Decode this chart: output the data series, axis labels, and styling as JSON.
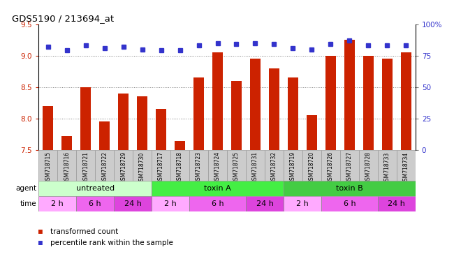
{
  "title": "GDS5190 / 213694_at",
  "samples": [
    "GSM718715",
    "GSM718716",
    "GSM718721",
    "GSM718722",
    "GSM718729",
    "GSM718730",
    "GSM718717",
    "GSM718718",
    "GSM718723",
    "GSM718724",
    "GSM718725",
    "GSM718731",
    "GSM718732",
    "GSM718719",
    "GSM718720",
    "GSM718726",
    "GSM718727",
    "GSM718728",
    "GSM718733",
    "GSM718734"
  ],
  "bar_values": [
    8.2,
    7.72,
    8.5,
    7.95,
    8.4,
    8.35,
    8.15,
    7.65,
    8.65,
    9.05,
    8.6,
    8.95,
    8.8,
    8.65,
    8.05,
    9.0,
    9.25,
    9.0,
    8.95,
    9.05
  ],
  "dot_values": [
    82,
    79,
    83,
    81,
    82,
    80,
    79,
    79,
    83,
    85,
    84,
    85,
    84,
    81,
    80,
    84,
    87,
    83,
    83,
    83
  ],
  "ylim_left": [
    7.5,
    9.5
  ],
  "ylim_right": [
    0,
    100
  ],
  "yticks_left": [
    7.5,
    8.0,
    8.5,
    9.0,
    9.5
  ],
  "yticks_right": [
    0,
    25,
    50,
    75,
    100
  ],
  "bar_color": "#cc2200",
  "dot_color": "#3333cc",
  "dot_marker": "s",
  "dot_size": 5,
  "gridlines": [
    8.0,
    8.5,
    9.0
  ],
  "agent_groups": [
    {
      "label": "untreated",
      "start": 0,
      "end": 6,
      "color": "#ccffcc"
    },
    {
      "label": "toxin A",
      "start": 6,
      "end": 13,
      "color": "#44ee44"
    },
    {
      "label": "toxin B",
      "start": 13,
      "end": 20,
      "color": "#44cc44"
    }
  ],
  "time_groups": [
    {
      "label": "2 h",
      "start": 0,
      "end": 2,
      "color": "#ffaaff"
    },
    {
      "label": "6 h",
      "start": 2,
      "end": 4,
      "color": "#ee66ee"
    },
    {
      "label": "24 h",
      "start": 4,
      "end": 6,
      "color": "#dd44dd"
    },
    {
      "label": "2 h",
      "start": 6,
      "end": 8,
      "color": "#ffaaff"
    },
    {
      "label": "6 h",
      "start": 8,
      "end": 11,
      "color": "#ee66ee"
    },
    {
      "label": "24 h",
      "start": 11,
      "end": 13,
      "color": "#dd44dd"
    },
    {
      "label": "2 h",
      "start": 13,
      "end": 15,
      "color": "#ffaaff"
    },
    {
      "label": "6 h",
      "start": 15,
      "end": 18,
      "color": "#ee66ee"
    },
    {
      "label": "24 h",
      "start": 18,
      "end": 20,
      "color": "#dd44dd"
    }
  ],
  "legend_bar_label": "transformed count",
  "legend_dot_label": "percentile rank within the sample",
  "bar_width": 0.55,
  "background_color": "#ffffff",
  "sample_bg_color": "#cccccc",
  "axis_color_left": "#cc2200",
  "axis_color_right": "#3333cc",
  "label_area_color": "#ffffff",
  "n_samples": 20,
  "group_seps": [
    6,
    13
  ]
}
